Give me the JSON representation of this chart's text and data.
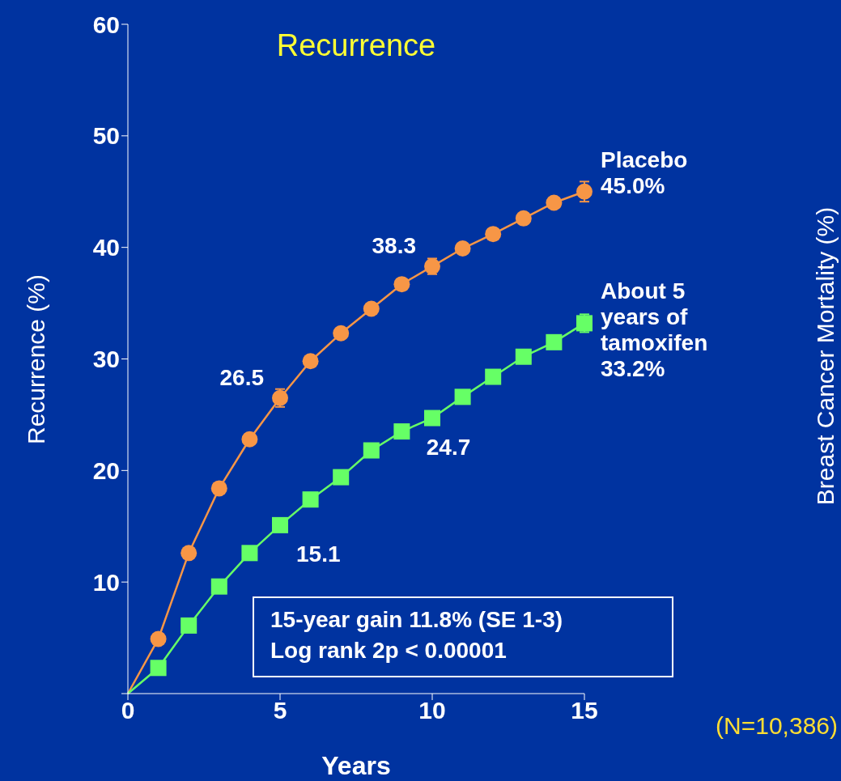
{
  "chart_data": {
    "type": "line",
    "title": "Recurrence",
    "xlabel": "Years",
    "ylabel": "Recurrence (%)",
    "x": [
      0,
      1,
      2,
      3,
      4,
      5,
      6,
      7,
      8,
      9,
      10,
      11,
      12,
      13,
      14,
      15
    ],
    "series": [
      {
        "name": "Placebo",
        "color": "#f79646",
        "marker": "circle",
        "values": [
          0,
          4.9,
          12.6,
          18.4,
          22.8,
          26.5,
          29.8,
          32.3,
          34.5,
          36.7,
          38.3,
          39.9,
          41.2,
          42.6,
          44.0,
          45.0
        ],
        "errors": [
          null,
          null,
          null,
          null,
          null,
          0.8,
          null,
          null,
          null,
          null,
          0.7,
          null,
          null,
          null,
          null,
          0.9
        ],
        "value_labels": [
          null,
          null,
          null,
          null,
          null,
          "26.5",
          null,
          null,
          null,
          null,
          "38.3",
          null,
          null,
          null,
          null,
          "45.0%"
        ]
      },
      {
        "name": "About 5 years of tamoxifen",
        "color": "#66ff66",
        "marker": "square",
        "values": [
          0,
          2.3,
          6.1,
          9.6,
          12.6,
          15.1,
          17.4,
          19.4,
          21.8,
          23.5,
          24.7,
          26.6,
          28.4,
          30.2,
          31.5,
          33.2
        ],
        "errors": [
          null,
          null,
          null,
          null,
          null,
          null,
          null,
          null,
          null,
          null,
          0.6,
          null,
          null,
          null,
          null,
          0.8
        ],
        "value_labels": [
          null,
          null,
          null,
          null,
          null,
          "15.1",
          null,
          null,
          null,
          null,
          "24.7",
          null,
          null,
          null,
          null,
          "33.2%"
        ]
      }
    ],
    "xlim": [
      0,
      15
    ],
    "xticks": [
      0,
      5,
      10,
      15
    ],
    "ylim": [
      0,
      60
    ],
    "yticks": [
      {
        "value": 0,
        "label": null
      },
      10,
      20,
      30,
      40,
      50,
      60
    ],
    "grid": false,
    "line_style": "solid",
    "annotations": [
      "15-year gain 11.8% (SE 1-3)",
      "Log rank 2p < 0.00001",
      "(N=10,386)",
      "Breast Cancer Mortality (%)"
    ]
  }
}
